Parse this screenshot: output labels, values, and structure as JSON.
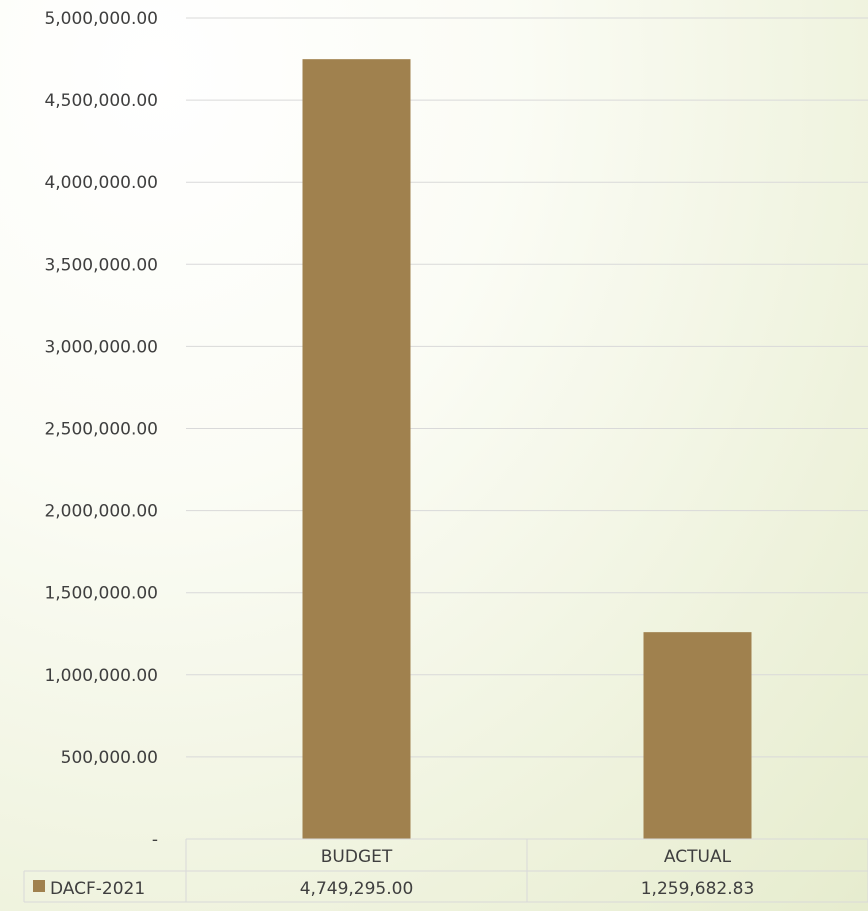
{
  "chart_data": {
    "type": "bar",
    "title": "",
    "xlabel": "",
    "ylabel": "",
    "categories": [
      "BUDGET",
      "ACTUAL"
    ],
    "series": [
      {
        "name": "DACF-2021",
        "values": [
          4749295.0,
          1259682.83
        ],
        "value_labels": [
          "4,749,295.00",
          "1,259,682.83"
        ]
      }
    ],
    "ylim": [
      0,
      5000000
    ],
    "y_tick_values": [
      0,
      500000,
      1000000,
      1500000,
      2000000,
      2500000,
      3000000,
      3500000,
      4000000,
      4500000,
      5000000
    ],
    "y_tick_labels": [
      "-",
      "500,000.00",
      "1,000,000.00",
      "1,500,000.00",
      "2,000,000.00",
      "2,500,000.00",
      "3,000,000.00",
      "3,500,000.00",
      "4,000,000.00",
      "4,500,000.00",
      "5,000,000.00"
    ],
    "grid": true,
    "legend": "data-table",
    "colors": {
      "bar": "#a0814e",
      "gridline": "#d9d9d9",
      "text": "#3f3f3f"
    }
  }
}
